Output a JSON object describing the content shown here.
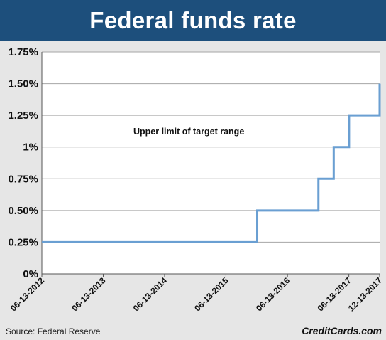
{
  "header": {
    "title": "Federal funds rate"
  },
  "footer": {
    "source": "Source: Federal Reserve",
    "brand": "CreditCards.com"
  },
  "colors": {
    "header_bg": "#1d4f7c",
    "line": "#6a9fd2",
    "grid": "#a6a6a6",
    "plot_bg": "#ffffff"
  },
  "chart_data": {
    "type": "line",
    "step": true,
    "title": "Federal funds rate",
    "xlabel": "",
    "ylabel": "",
    "x_ticks": [
      "06-13-2012",
      "06-13-2013",
      "06-13-2014",
      "06-13-2015",
      "06-13-2016",
      "06-13-2017",
      "12-13-2017"
    ],
    "y_ticks": [
      "0%",
      "0.25%",
      "0.50%",
      "0.75%",
      "1%",
      "1.25%",
      "1.50%",
      "1.75%"
    ],
    "ylim": [
      0,
      1.75
    ],
    "xlim": [
      "2012-06-13",
      "2017-12-13"
    ],
    "grid": true,
    "annotation": "Upper limit of target range",
    "series": [
      {
        "points": [
          {
            "x": "2012-06-13",
            "y": 0.25
          },
          {
            "x": "2015-12-16",
            "y": 0.5
          },
          {
            "x": "2016-12-14",
            "y": 0.75
          },
          {
            "x": "2017-03-15",
            "y": 1.0
          },
          {
            "x": "2017-06-14",
            "y": 1.25
          },
          {
            "x": "2017-12-13",
            "y": 1.5
          }
        ]
      }
    ]
  }
}
